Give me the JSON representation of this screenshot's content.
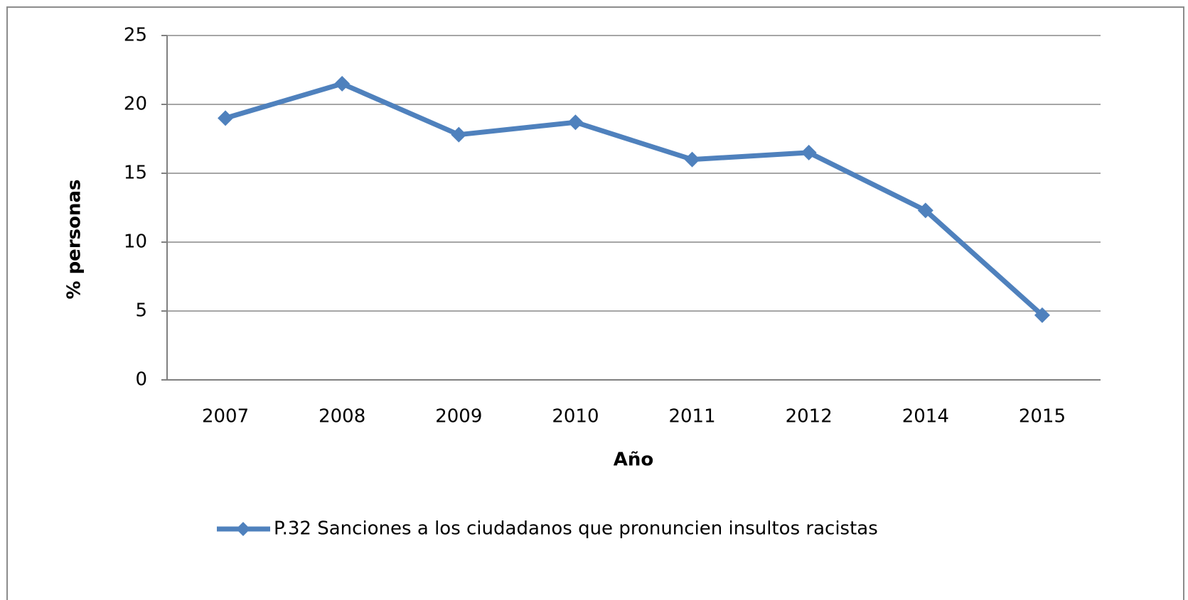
{
  "chart_data": {
    "type": "line",
    "x_label": "Año",
    "y_label": "% personas",
    "categories": [
      "2007",
      "2008",
      "2009",
      "2010",
      "2011",
      "2012",
      "2014",
      "2015"
    ],
    "series": [
      {
        "name": "P.32 Sanciones a los ciudadanos que pronuncien insultos racistas",
        "color": "#4f81bd",
        "values": [
          19,
          21.5,
          17.8,
          18.7,
          16,
          16.5,
          12.3,
          4.7
        ]
      }
    ],
    "ylim": [
      0,
      25
    ],
    "yticks": [
      0,
      5,
      10,
      15,
      20,
      25
    ],
    "grid": true,
    "legend": "bottom"
  }
}
